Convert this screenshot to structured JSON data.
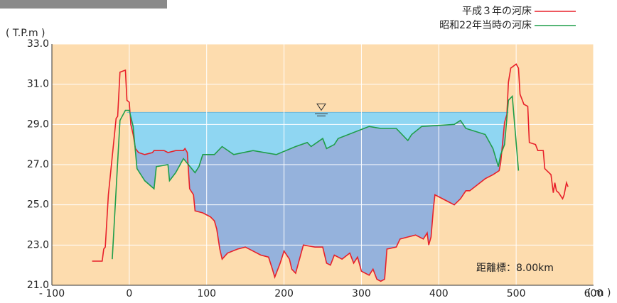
{
  "chart_data": {
    "type": "line",
    "y_label": "( T.P.m )",
    "x_label": "( m )",
    "annotation": "距離標：8.00km",
    "xlim": [
      -100,
      600
    ],
    "ylim": [
      21.0,
      33.0
    ],
    "xticks": [
      {
        "value": -100,
        "label": "- 100"
      },
      0,
      100,
      200,
      300,
      400,
      500,
      600
    ],
    "yticks": [
      {
        "value": 21,
        "label": "21.0"
      },
      {
        "value": 23,
        "label": "23.0"
      },
      {
        "value": 25,
        "label": "25.0"
      },
      {
        "value": 27,
        "label": "27.0"
      },
      {
        "value": 29,
        "label": "29.0"
      },
      {
        "value": 31,
        "label": "31.0"
      },
      {
        "value": 33,
        "label": "33.0"
      }
    ],
    "grid": true,
    "legend": "top-right",
    "water_level": 29.6,
    "series": [
      {
        "name": "平成３年の河床",
        "color": "#e8202a",
        "x": [
          -48,
          -35,
          -33,
          -31,
          -27,
          -17,
          -15,
          -12,
          -5,
          -3,
          0,
          2,
          5,
          8,
          12,
          20,
          30,
          32,
          45,
          50,
          60,
          70,
          72,
          75,
          78,
          83,
          85,
          95,
          105,
          110,
          113,
          117,
          120,
          127,
          140,
          150,
          160,
          170,
          180,
          185,
          188,
          195,
          200,
          207,
          210,
          215,
          220,
          225,
          240,
          250,
          255,
          260,
          265,
          275,
          285,
          290,
          295,
          300,
          310,
          315,
          320,
          325,
          330,
          333,
          345,
          350,
          360,
          370,
          380,
          385,
          387,
          390,
          393,
          395,
          410,
          420,
          428,
          435,
          440,
          450,
          460,
          470,
          478,
          480,
          485,
          488,
          490,
          493,
          500,
          503,
          505,
          510,
          515,
          517,
          525,
          528,
          530,
          535,
          537,
          545,
          548,
          550,
          552,
          555,
          560,
          562,
          565,
          567
        ],
        "values": [
          22.2,
          22.2,
          22.8,
          22.9,
          25.5,
          29.3,
          29.4,
          31.6,
          31.7,
          30.2,
          30.1,
          29.0,
          28.5,
          27.8,
          27.6,
          27.5,
          27.6,
          27.7,
          27.7,
          27.6,
          27.7,
          27.7,
          27.8,
          27.6,
          25.8,
          25.5,
          24.7,
          24.6,
          24.4,
          24.2,
          23.8,
          22.8,
          22.3,
          22.6,
          22.8,
          22.9,
          22.7,
          22.5,
          22.4,
          21.8,
          21.4,
          22.1,
          22.7,
          22.3,
          21.8,
          21.6,
          22.3,
          23.0,
          22.9,
          22.9,
          22.1,
          22.0,
          22.5,
          22.3,
          22.6,
          22.1,
          22.4,
          21.7,
          21.5,
          21.8,
          21.3,
          21.2,
          21.3,
          22.8,
          22.9,
          23.3,
          23.4,
          23.5,
          23.3,
          23.6,
          23.0,
          23.4,
          24.8,
          25.5,
          25.2,
          25.0,
          25.3,
          25.7,
          25.7,
          26.0,
          26.3,
          26.5,
          26.7,
          27.1,
          29.1,
          29.5,
          31.1,
          31.8,
          32.0,
          31.8,
          30.5,
          30.0,
          29.9,
          28.1,
          28.0,
          27.7,
          27.7,
          27.7,
          26.8,
          26.5,
          25.6,
          26.1,
          25.7,
          25.6,
          25.3,
          25.5,
          26.1,
          25.9
        ]
      },
      {
        "name": "昭和22年当時の河床",
        "color": "#1f9e4a",
        "x": [
          -22,
          -12,
          -5,
          0,
          5,
          10,
          20,
          32,
          35,
          50,
          52,
          60,
          70,
          85,
          90,
          95,
          110,
          120,
          135,
          160,
          190,
          215,
          230,
          235,
          250,
          255,
          265,
          270,
          310,
          325,
          345,
          360,
          365,
          378,
          420,
          428,
          435,
          460,
          470,
          477,
          480,
          485,
          490,
          495,
          503
        ],
        "values": [
          22.3,
          29.2,
          29.7,
          29.7,
          28.9,
          26.8,
          26.2,
          25.8,
          26.9,
          27.0,
          26.2,
          26.6,
          27.3,
          26.6,
          26.9,
          27.5,
          27.5,
          27.9,
          27.5,
          27.7,
          27.5,
          27.9,
          28.1,
          27.9,
          28.3,
          27.8,
          28.0,
          28.3,
          28.9,
          28.8,
          28.8,
          28.2,
          28.5,
          28.9,
          29.0,
          29.2,
          28.8,
          28.5,
          27.8,
          26.9,
          27.5,
          28.0,
          30.2,
          30.4,
          26.7
        ]
      }
    ]
  }
}
